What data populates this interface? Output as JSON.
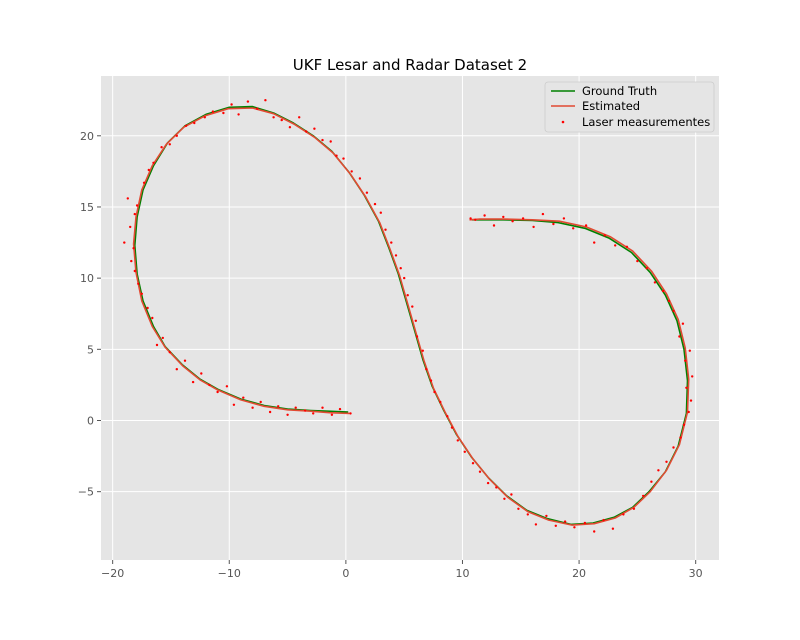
{
  "chart_data": {
    "type": "line",
    "title": "UKF Lesar and Radar Dataset 2",
    "xlabel": "",
    "ylabel": "",
    "xlim": [
      -21,
      32
    ],
    "ylim": [
      -9.8,
      24.2
    ],
    "xticks": [
      -20,
      -10,
      0,
      10,
      20,
      30
    ],
    "yticks": [
      -5,
      0,
      5,
      10,
      15,
      20
    ],
    "xtick_labels": [
      "−20",
      "−10",
      "0",
      "10",
      "20",
      "30"
    ],
    "ytick_labels": [
      "−5",
      "0",
      "5",
      "10",
      "15",
      "20"
    ],
    "grid": true,
    "legend_position": "top-right",
    "colors": {
      "ground_truth": "#008000",
      "estimated": "#e24a33",
      "laser": "#ff0000",
      "plot_bg": "#e5e5e5",
      "grid": "#ffffff"
    },
    "series": [
      {
        "name": "Ground Truth",
        "kind": "line",
        "points": [
          [
            0.2,
            0.6
          ],
          [
            -1.5,
            0.65
          ],
          [
            -3,
            0.7
          ],
          [
            -5,
            0.8
          ],
          [
            -7,
            1.05
          ],
          [
            -9,
            1.5
          ],
          [
            -11,
            2.2
          ],
          [
            -12.5,
            2.9
          ],
          [
            -14,
            3.9
          ],
          [
            -15.5,
            5.2
          ],
          [
            -16.5,
            6.6
          ],
          [
            -17.4,
            8.4
          ],
          [
            -17.9,
            10.3
          ],
          [
            -18.1,
            12.3
          ],
          [
            -17.9,
            14.3
          ],
          [
            -17.4,
            16.2
          ],
          [
            -16.5,
            17.9
          ],
          [
            -15.3,
            19.5
          ],
          [
            -13.8,
            20.7
          ],
          [
            -12,
            21.5
          ],
          [
            -10,
            22
          ],
          [
            -8,
            22.05
          ],
          [
            -6.2,
            21.6
          ],
          [
            -4.5,
            20.9
          ],
          [
            -2.8,
            20
          ],
          [
            -1.2,
            18.9
          ],
          [
            0.3,
            17.4
          ],
          [
            1.6,
            15.8
          ],
          [
            2.8,
            14
          ],
          [
            3.7,
            12.1
          ],
          [
            4.5,
            10.3
          ],
          [
            5.2,
            8.3
          ],
          [
            5.9,
            6.3
          ],
          [
            6.6,
            4.3
          ],
          [
            7.4,
            2.4
          ],
          [
            8.4,
            0.7
          ],
          [
            9.5,
            -1
          ],
          [
            10.8,
            -2.6
          ],
          [
            12.2,
            -4
          ],
          [
            13.8,
            -5.3
          ],
          [
            15.5,
            -6.3
          ],
          [
            17.3,
            -6.9
          ],
          [
            19.3,
            -7.3
          ],
          [
            21.2,
            -7.2
          ],
          [
            23,
            -6.8
          ],
          [
            24.6,
            -6.1
          ],
          [
            26,
            -5
          ],
          [
            27.4,
            -3.6
          ],
          [
            28.5,
            -1.8
          ],
          [
            29.2,
            0.5
          ],
          [
            29.3,
            2.8
          ],
          [
            29,
            5
          ],
          [
            28.4,
            7
          ],
          [
            27.4,
            8.8
          ],
          [
            26.1,
            10.4
          ],
          [
            24.5,
            11.8
          ],
          [
            22.6,
            12.8
          ],
          [
            20.5,
            13.5
          ],
          [
            18.2,
            13.9
          ],
          [
            16,
            14.05
          ],
          [
            13.5,
            14.1
          ],
          [
            11.5,
            14.1
          ],
          [
            10.8,
            14.1
          ]
        ]
      },
      {
        "name": "Estimated",
        "kind": "line",
        "points": [
          [
            0.3,
            0.5
          ],
          [
            -1.4,
            0.55
          ],
          [
            -3,
            0.65
          ],
          [
            -5,
            0.75
          ],
          [
            -7,
            1
          ],
          [
            -9,
            1.45
          ],
          [
            -11,
            2.15
          ],
          [
            -12.5,
            2.85
          ],
          [
            -14,
            3.85
          ],
          [
            -15.5,
            5.15
          ],
          [
            -16.6,
            6.6
          ],
          [
            -17.5,
            8.4
          ],
          [
            -18,
            10.4
          ],
          [
            -18.2,
            12.4
          ],
          [
            -18,
            14.3
          ],
          [
            -17.5,
            16.2
          ],
          [
            -16.6,
            17.9
          ],
          [
            -15.4,
            19.4
          ],
          [
            -13.9,
            20.6
          ],
          [
            -12.1,
            21.4
          ],
          [
            -10.1,
            21.9
          ],
          [
            -8,
            21.95
          ],
          [
            -6.2,
            21.55
          ],
          [
            -4.4,
            20.8
          ],
          [
            -2.7,
            19.9
          ],
          [
            -1.1,
            18.8
          ],
          [
            0.4,
            17.3
          ],
          [
            1.7,
            15.7
          ],
          [
            2.9,
            13.9
          ],
          [
            3.8,
            12
          ],
          [
            4.6,
            10.2
          ],
          [
            5.3,
            8.2
          ],
          [
            6,
            6.2
          ],
          [
            6.7,
            4.2
          ],
          [
            7.5,
            2.3
          ],
          [
            8.5,
            0.6
          ],
          [
            9.6,
            -1.1
          ],
          [
            10.9,
            -2.7
          ],
          [
            12.3,
            -4.1
          ],
          [
            13.9,
            -5.4
          ],
          [
            15.6,
            -6.4
          ],
          [
            17.4,
            -7
          ],
          [
            19.4,
            -7.35
          ],
          [
            21.3,
            -7.25
          ],
          [
            23.1,
            -6.85
          ],
          [
            24.7,
            -6.1
          ],
          [
            26.1,
            -5
          ],
          [
            27.5,
            -3.5
          ],
          [
            28.6,
            -1.7
          ],
          [
            29.3,
            0.6
          ],
          [
            29.4,
            2.9
          ],
          [
            29.1,
            5.1
          ],
          [
            28.5,
            7.1
          ],
          [
            27.5,
            8.9
          ],
          [
            26.2,
            10.5
          ],
          [
            24.6,
            11.9
          ],
          [
            22.7,
            12.9
          ],
          [
            20.6,
            13.6
          ],
          [
            18.3,
            14
          ],
          [
            16,
            14.1
          ],
          [
            13.5,
            14.15
          ],
          [
            11.5,
            14.15
          ],
          [
            10.6,
            14.1
          ]
        ]
      },
      {
        "name": "Laser measurementes",
        "kind": "scatter",
        "points": [
          [
            0.4,
            0.5
          ],
          [
            -0.5,
            0.8
          ],
          [
            -1.2,
            0.4
          ],
          [
            -2,
            0.9
          ],
          [
            -2.8,
            0.5
          ],
          [
            -3.5,
            0.7
          ],
          [
            -4.3,
            0.9
          ],
          [
            -5,
            0.4
          ],
          [
            -5.8,
            1
          ],
          [
            -6.5,
            0.6
          ],
          [
            -7.3,
            1.3
          ],
          [
            -8,
            0.9
          ],
          [
            -8.8,
            1.6
          ],
          [
            -9.6,
            1.1
          ],
          [
            -10.2,
            2.4
          ],
          [
            -11,
            2
          ],
          [
            -11.7,
            2.5
          ],
          [
            -12.4,
            3.3
          ],
          [
            -13.1,
            2.7
          ],
          [
            -13.8,
            4.2
          ],
          [
            -14.5,
            3.6
          ],
          [
            -15.1,
            4.8
          ],
          [
            -15.7,
            5.8
          ],
          [
            -16.2,
            5.3
          ],
          [
            -16.6,
            7.2
          ],
          [
            -17,
            7.9
          ],
          [
            -17.5,
            8.9
          ],
          [
            -17.8,
            9.6
          ],
          [
            -18.1,
            10.5
          ],
          [
            -18.4,
            11.2
          ],
          [
            -18.2,
            12.1
          ],
          [
            -19,
            12.5
          ],
          [
            -18.5,
            13.6
          ],
          [
            -18.1,
            14.5
          ],
          [
            -18.7,
            15.6
          ],
          [
            -17.9,
            15.1
          ],
          [
            -17.3,
            16.7
          ],
          [
            -16.9,
            17.6
          ],
          [
            -16.5,
            18.1
          ],
          [
            -15.8,
            19.2
          ],
          [
            -15.1,
            19.4
          ],
          [
            -14.5,
            20
          ],
          [
            -13.7,
            20.7
          ],
          [
            -13,
            20.9
          ],
          [
            -12.1,
            21.3
          ],
          [
            -11.4,
            21.7
          ],
          [
            -10.5,
            21.6
          ],
          [
            -9.8,
            22.2
          ],
          [
            -9.2,
            21.5
          ],
          [
            -8.4,
            22.4
          ],
          [
            -7.6,
            21.9
          ],
          [
            -6.9,
            22.5
          ],
          [
            -6.2,
            21.3
          ],
          [
            -5.5,
            21.1
          ],
          [
            -4.8,
            20.6
          ],
          [
            -4,
            21.3
          ],
          [
            -3.4,
            20.3
          ],
          [
            -2.7,
            20.5
          ],
          [
            -2,
            19.7
          ],
          [
            -1.3,
            19.6
          ],
          [
            -0.8,
            18.6
          ],
          [
            -0.2,
            18.4
          ],
          [
            0.5,
            17.5
          ],
          [
            1.2,
            17
          ],
          [
            1.8,
            16
          ],
          [
            2.5,
            15.2
          ],
          [
            3,
            14.6
          ],
          [
            3.4,
            13.4
          ],
          [
            3.9,
            12.5
          ],
          [
            4.3,
            11.6
          ],
          [
            4.7,
            10.7
          ],
          [
            5,
            10
          ],
          [
            5.3,
            8.8
          ],
          [
            5.7,
            8
          ],
          [
            6,
            7
          ],
          [
            6.1,
            5.9
          ],
          [
            6.6,
            4.9
          ],
          [
            6.9,
            3.6
          ],
          [
            7.3,
            2.8
          ],
          [
            7.6,
            2
          ],
          [
            8.1,
            1.3
          ],
          [
            8.7,
            0.3
          ],
          [
            9.1,
            -0.5
          ],
          [
            9.6,
            -1.4
          ],
          [
            10.2,
            -2.2
          ],
          [
            10.9,
            -3
          ],
          [
            11.5,
            -3.6
          ],
          [
            12.2,
            -4.4
          ],
          [
            12.9,
            -4.7
          ],
          [
            13.6,
            -5.5
          ],
          [
            14.2,
            -5.2
          ],
          [
            14.8,
            -6.2
          ],
          [
            15.6,
            -6.6
          ],
          [
            16.3,
            -7.3
          ],
          [
            17.2,
            -6.7
          ],
          [
            18,
            -7.4
          ],
          [
            18.8,
            -7.1
          ],
          [
            19.6,
            -7.5
          ],
          [
            20.5,
            -7.2
          ],
          [
            21.3,
            -7.8
          ],
          [
            22.1,
            -7
          ],
          [
            22.9,
            -7.6
          ],
          [
            23.8,
            -6.6
          ],
          [
            24.7,
            -6.2
          ],
          [
            25.5,
            -5.3
          ],
          [
            26.2,
            -4.3
          ],
          [
            26.8,
            -3.5
          ],
          [
            27.5,
            -2.9
          ],
          [
            28.1,
            -1.9
          ],
          [
            28.7,
            -1.2
          ],
          [
            29,
            -0.3
          ],
          [
            29.4,
            0.6
          ],
          [
            29.6,
            1.4
          ],
          [
            29.2,
            2.3
          ],
          [
            29.7,
            3.1
          ],
          [
            29.1,
            4.2
          ],
          [
            29.5,
            4.9
          ],
          [
            28.6,
            5.9
          ],
          [
            28.9,
            6.8
          ],
          [
            28.1,
            7.7
          ],
          [
            27.7,
            8.4
          ],
          [
            27.2,
            9.1
          ],
          [
            26.5,
            9.7
          ],
          [
            25.8,
            10.7
          ],
          [
            25,
            11.2
          ],
          [
            24.1,
            12.2
          ],
          [
            23.1,
            12.3
          ],
          [
            22.2,
            13
          ],
          [
            21.3,
            12.5
          ],
          [
            20.6,
            13.7
          ],
          [
            19.5,
            13.5
          ],
          [
            18.7,
            14.2
          ],
          [
            17.8,
            13.8
          ],
          [
            16.9,
            14.5
          ],
          [
            16.1,
            13.6
          ],
          [
            15.2,
            14.2
          ],
          [
            14.3,
            14
          ],
          [
            13.5,
            14.3
          ],
          [
            12.7,
            13.7
          ],
          [
            11.9,
            14.4
          ],
          [
            11.1,
            14.1
          ],
          [
            10.7,
            14.2
          ]
        ]
      }
    ]
  }
}
